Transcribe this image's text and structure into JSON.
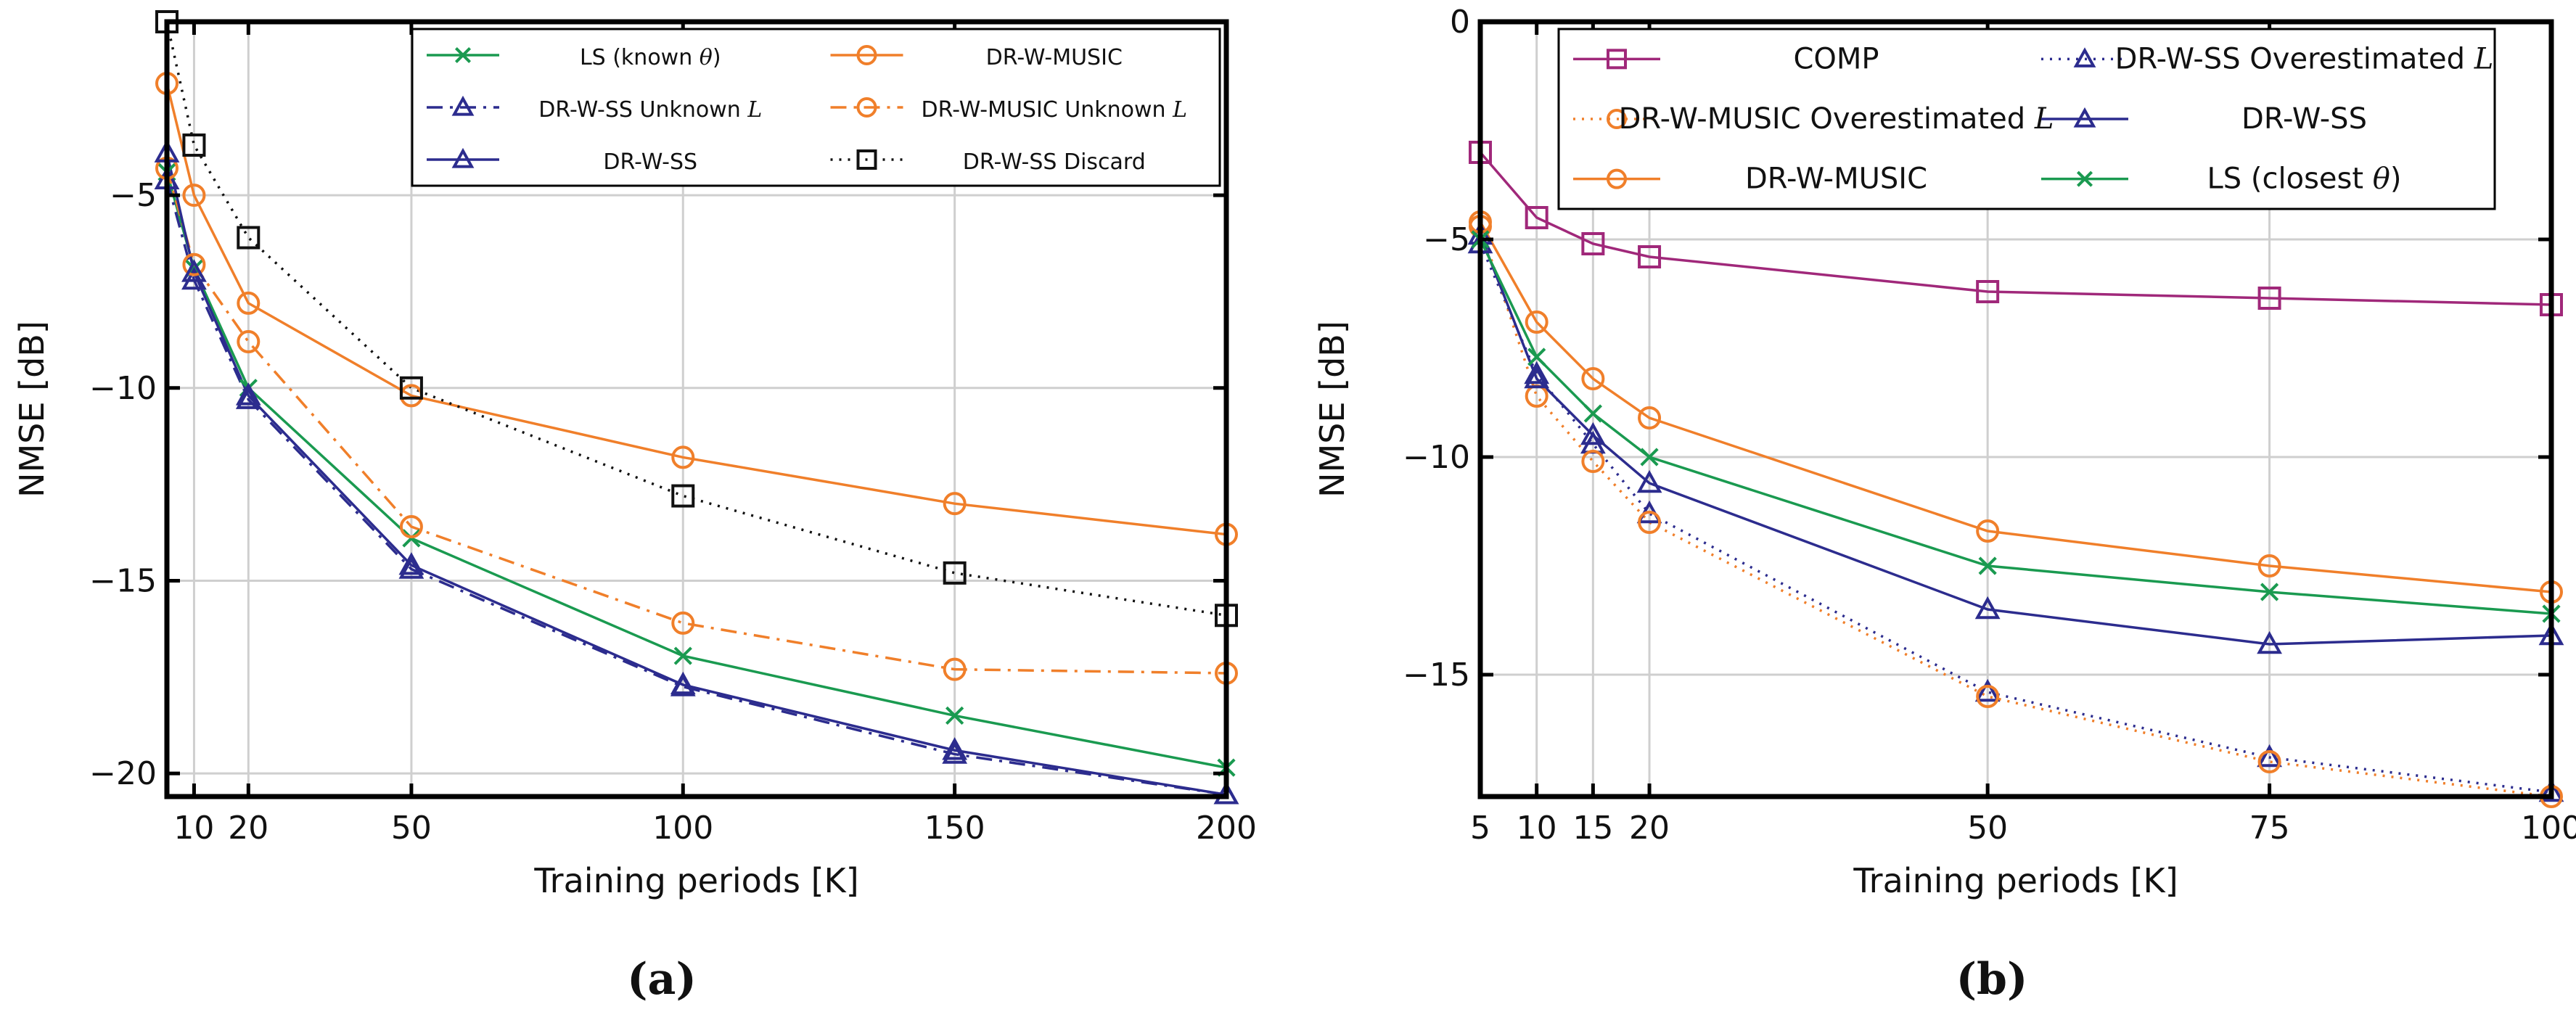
{
  "chart_data": [
    {
      "type": "line",
      "caption": "(a)",
      "xlabel": "Training periods [K]",
      "ylabel": "NMSE [dB]",
      "xlim": [
        5,
        200
      ],
      "ylim": [
        -20.6,
        -0.5
      ],
      "xticks": [
        10,
        20,
        50,
        100,
        150,
        200
      ],
      "yticks": [
        -5,
        -10,
        -15,
        -20
      ],
      "xtick_labels": [
        "10",
        "20",
        "50",
        "100",
        "150",
        "200"
      ],
      "ytick_labels": [
        "−5",
        "−10",
        "−15",
        "−20"
      ],
      "grid": true,
      "legend_position": "top-right",
      "legend_columns": 2,
      "series": [
        {
          "name": "LS (known θ)",
          "color": "#1a9a50",
          "dash": "solid",
          "marker": "x",
          "x": [
            5,
            10,
            20,
            50,
            100,
            150,
            200
          ],
          "y": [
            -4.4,
            -6.9,
            -10.0,
            -13.9,
            -16.95,
            -18.5,
            -19.85
          ]
        },
        {
          "name": "DR-W-MUSIC",
          "color": "#f07f2a",
          "dash": "solid",
          "marker": "circle",
          "x": [
            5,
            10,
            20,
            50,
            100,
            150,
            200
          ],
          "y": [
            -2.1,
            -5.0,
            -7.8,
            -10.2,
            -11.8,
            -13.0,
            -13.8
          ]
        },
        {
          "name": "DR-W-SS Unknown L",
          "color": "#2c2c8e",
          "dash": "dashdot",
          "marker": "triangle",
          "x": [
            5,
            10,
            20,
            50,
            100,
            150,
            200
          ],
          "y": [
            -4.6,
            -7.2,
            -10.3,
            -14.7,
            -17.75,
            -19.5,
            -20.55
          ]
        },
        {
          "name": "DR-W-MUSIC Unknown L",
          "color": "#f07f2a",
          "dash": "dashdot",
          "marker": "circle",
          "x": [
            5,
            10,
            20,
            50,
            100,
            150,
            200
          ],
          "y": [
            -4.3,
            -6.8,
            -8.8,
            -13.6,
            -16.1,
            -17.3,
            -17.4
          ]
        },
        {
          "name": "DR-W-SS",
          "color": "#2c2c8e",
          "dash": "solid",
          "marker": "triangle",
          "x": [
            5,
            10,
            20,
            50,
            100,
            150,
            200
          ],
          "y": [
            -3.9,
            -7.0,
            -10.2,
            -14.6,
            -17.7,
            -19.4,
            -20.55
          ]
        },
        {
          "name": "DR-W-SS Discard",
          "color": "#111111",
          "dash": "dotted",
          "marker": "square",
          "x": [
            5,
            10,
            20,
            50,
            100,
            150,
            200
          ],
          "y": [
            -0.5,
            -3.7,
            -6.1,
            -10.0,
            -12.8,
            -14.8,
            -15.9
          ]
        }
      ]
    },
    {
      "type": "line",
      "caption": "(b)",
      "xlabel": "Training periods [K]",
      "ylabel": "NMSE [dB]",
      "xlim": [
        5,
        100
      ],
      "ylim": [
        -17.8,
        0
      ],
      "xticks": [
        5,
        10,
        15,
        20,
        50,
        75,
        100
      ],
      "yticks": [
        0,
        -5,
        -10,
        -15
      ],
      "xtick_labels": [
        "5",
        "10",
        "15",
        "20",
        "50",
        "75",
        "100"
      ],
      "ytick_labels": [
        "0",
        "−5",
        "−10",
        "−15"
      ],
      "grid": true,
      "legend_position": "top-right",
      "legend_columns": 2,
      "series": [
        {
          "name": "COMP",
          "color": "#a0287a",
          "dash": "solid",
          "marker": "square",
          "x": [
            5,
            10,
            15,
            20,
            50,
            75,
            100
          ],
          "y": [
            -3.0,
            -4.5,
            -5.1,
            -5.4,
            -6.2,
            -6.35,
            -6.5
          ]
        },
        {
          "name": "DR-W-SS Overestimated L",
          "color": "#2c2c8e",
          "dash": "dotted",
          "marker": "triangle",
          "x": [
            5,
            10,
            15,
            20,
            50,
            75,
            100
          ],
          "y": [
            -5.1,
            -8.1,
            -9.7,
            -11.3,
            -15.4,
            -16.9,
            -17.7
          ]
        },
        {
          "name": "DR-W-MUSIC Overestimated L",
          "color": "#f07f2a",
          "dash": "dotted",
          "marker": "circle",
          "x": [
            5,
            10,
            15,
            20,
            50,
            75,
            100
          ],
          "y": [
            -4.7,
            -8.6,
            -10.1,
            -11.5,
            -15.5,
            -17.0,
            -17.8
          ]
        },
        {
          "name": "DR-W-SS",
          "color": "#2c2c8e",
          "dash": "solid",
          "marker": "triangle",
          "x": [
            5,
            10,
            15,
            20,
            50,
            75,
            100
          ],
          "y": [
            -4.9,
            -8.2,
            -9.5,
            -10.6,
            -13.5,
            -14.3,
            -14.1
          ]
        },
        {
          "name": "DR-W-MUSIC",
          "color": "#f07f2a",
          "dash": "solid",
          "marker": "circle",
          "x": [
            5,
            10,
            15,
            20,
            50,
            75,
            100
          ],
          "y": [
            -4.6,
            -6.9,
            -8.2,
            -9.1,
            -11.7,
            -12.5,
            -13.1
          ]
        },
        {
          "name": "LS (closest θ)",
          "color": "#1a9a50",
          "dash": "solid",
          "marker": "x",
          "x": [
            5,
            10,
            15,
            20,
            50,
            75,
            100
          ],
          "y": [
            -5.0,
            -7.7,
            -9.0,
            -10.0,
            -12.5,
            -13.1,
            -13.6
          ]
        }
      ]
    }
  ]
}
